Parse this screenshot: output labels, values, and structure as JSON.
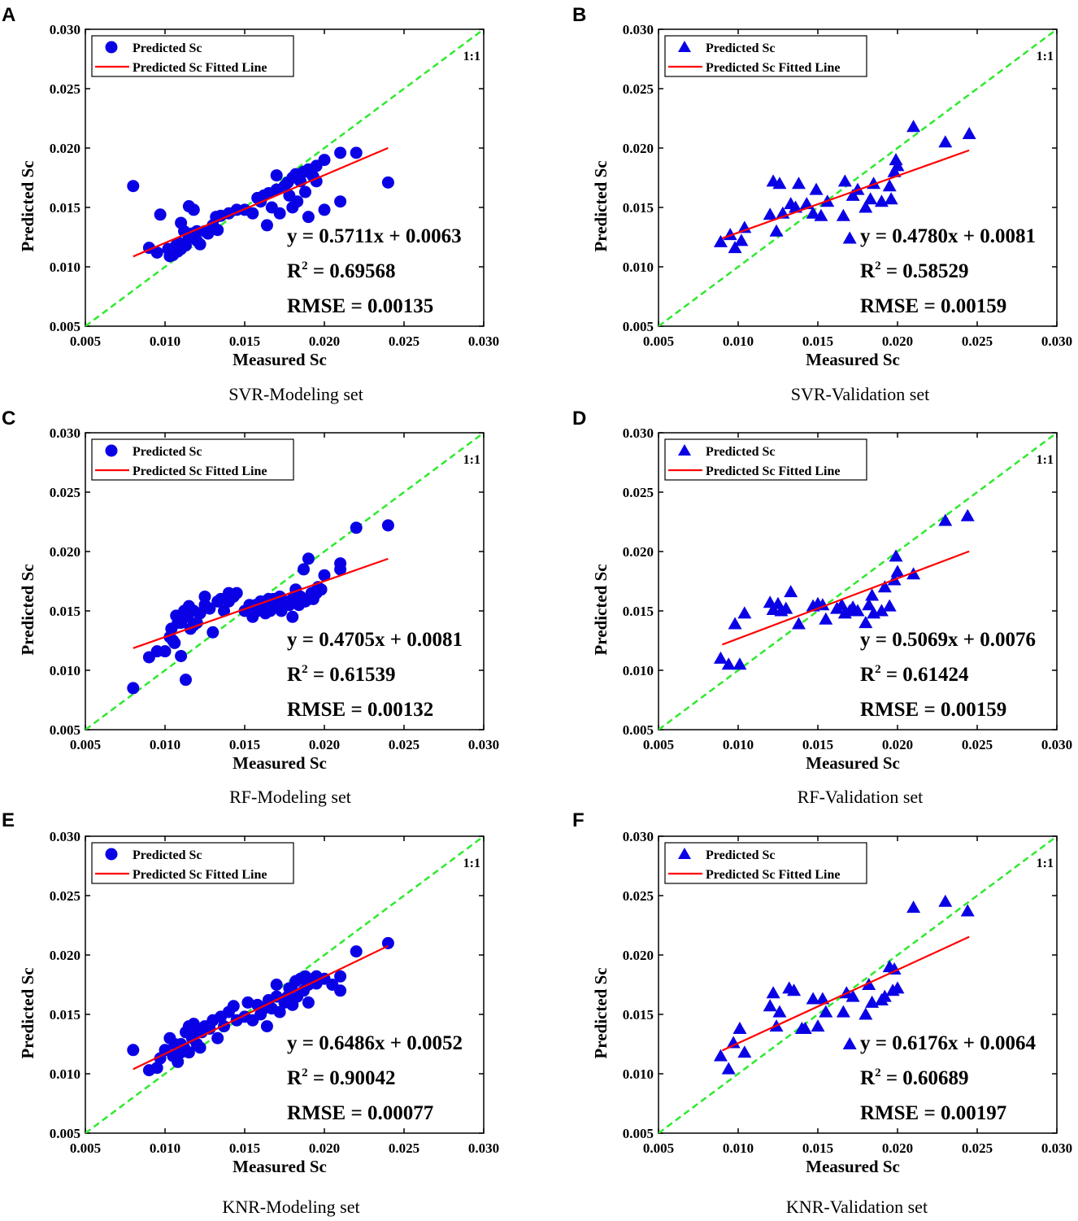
{
  "figure": {
    "legend": {
      "points": "Predicted Sc",
      "line": "Predicted Sc Fitted Line"
    },
    "xlabel": "Measured Sc",
    "ylabel": "Predicted Sc",
    "ref_label": "1:1",
    "ticks": [
      "0.005",
      "0.010",
      "0.015",
      "0.020",
      "0.025",
      "0.030"
    ],
    "colors": {
      "points": "#0a00e6",
      "fit": "#ff0000",
      "ref": "#2eea2e",
      "axis": "#000000"
    }
  },
  "chart_data": [
    {
      "panel": "A",
      "type": "scatter",
      "title": "SVR-Modeling set",
      "marker": "circle",
      "xlabel": "Measured Sc",
      "ylabel": "Predicted Sc",
      "xlim": [
        0.005,
        0.03
      ],
      "ylim": [
        0.005,
        0.03
      ],
      "equation": "y = 0.5711x + 0.0063",
      "r2_label": "R",
      "r2_value": " = 0.69568",
      "rmse": "RMSE = 0.00135",
      "fit": {
        "slope": 0.5711,
        "intercept": 0.0063,
        "x_range": [
          0.008,
          0.024
        ]
      },
      "x": [
        0.008,
        0.009,
        0.0095,
        0.0097,
        0.0102,
        0.0103,
        0.0104,
        0.0105,
        0.0105,
        0.0107,
        0.0108,
        0.0109,
        0.011,
        0.011,
        0.0112,
        0.0113,
        0.0115,
        0.0115,
        0.0117,
        0.0118,
        0.0118,
        0.012,
        0.012,
        0.0122,
        0.0125,
        0.0127,
        0.013,
        0.0132,
        0.0133,
        0.0135,
        0.014,
        0.0145,
        0.015,
        0.0155,
        0.0158,
        0.016,
        0.0162,
        0.0164,
        0.0165,
        0.0167,
        0.017,
        0.017,
        0.0172,
        0.0175,
        0.0177,
        0.0178,
        0.018,
        0.018,
        0.0182,
        0.0183,
        0.0185,
        0.0187,
        0.0188,
        0.019,
        0.019,
        0.0192,
        0.0193,
        0.0195,
        0.0195,
        0.02,
        0.02,
        0.021,
        0.021,
        0.022,
        0.024
      ],
      "y": [
        0.0168,
        0.0116,
        0.0112,
        0.0144,
        0.0115,
        0.0109,
        0.0113,
        0.011,
        0.0115,
        0.0118,
        0.0113,
        0.012,
        0.0137,
        0.0115,
        0.013,
        0.0118,
        0.0125,
        0.0151,
        0.0128,
        0.0125,
        0.0148,
        0.0122,
        0.013,
        0.0119,
        0.013,
        0.0128,
        0.0135,
        0.0142,
        0.0131,
        0.0143,
        0.0145,
        0.0148,
        0.0148,
        0.0145,
        0.0158,
        0.0155,
        0.016,
        0.0135,
        0.0162,
        0.015,
        0.0165,
        0.0177,
        0.0145,
        0.0168,
        0.0171,
        0.016,
        0.0175,
        0.015,
        0.0178,
        0.0155,
        0.0172,
        0.018,
        0.0163,
        0.0182,
        0.0142,
        0.0178,
        0.0176,
        0.0185,
        0.0172,
        0.019,
        0.0148,
        0.0155,
        0.0196,
        0.0196,
        0.0171
      ]
    },
    {
      "panel": "B",
      "type": "scatter",
      "title": "SVR-Validation set",
      "marker": "triangle",
      "xlabel": "Measured Sc",
      "ylabel": "Predicted Sc",
      "xlim": [
        0.005,
        0.03
      ],
      "ylim": [
        0.005,
        0.03
      ],
      "equation": "y = 0.4780x + 0.0081",
      "r2_label": "R",
      "r2_value": " = 0.58529",
      "rmse": "RMSE = 0.00159",
      "fit": {
        "slope": 0.478,
        "intercept": 0.0081,
        "x_range": [
          0.009,
          0.0245
        ]
      },
      "x": [
        0.0089,
        0.0095,
        0.0098,
        0.0102,
        0.0104,
        0.012,
        0.0122,
        0.0124,
        0.0126,
        0.0128,
        0.0133,
        0.0136,
        0.0138,
        0.0143,
        0.0147,
        0.0149,
        0.0152,
        0.0156,
        0.0166,
        0.0167,
        0.017,
        0.0172,
        0.0175,
        0.018,
        0.0183,
        0.0185,
        0.019,
        0.0195,
        0.0196,
        0.0198,
        0.0199,
        0.02,
        0.021,
        0.023,
        0.0245
      ],
      "y": [
        0.0121,
        0.0127,
        0.0116,
        0.0122,
        0.0133,
        0.0144,
        0.0172,
        0.013,
        0.017,
        0.0145,
        0.0153,
        0.015,
        0.017,
        0.0153,
        0.0145,
        0.0165,
        0.0143,
        0.0155,
        0.0143,
        0.0172,
        0.0124,
        0.016,
        0.0165,
        0.015,
        0.0157,
        0.017,
        0.0155,
        0.0168,
        0.0157,
        0.018,
        0.019,
        0.0185,
        0.0218,
        0.0205,
        0.0212
      ]
    },
    {
      "panel": "C",
      "type": "scatter",
      "title": "RF-Modeling set",
      "marker": "circle",
      "xlabel": "Measured Sc",
      "ylabel": "Predicted Sc",
      "xlim": [
        0.005,
        0.03
      ],
      "ylim": [
        0.005,
        0.03
      ],
      "equation": "y = 0.4705x + 0.0081",
      "r2_label": "R",
      "r2_value": " = 0.61539",
      "rmse": "RMSE = 0.00132",
      "fit": {
        "slope": 0.4705,
        "intercept": 0.0081,
        "x_range": [
          0.008,
          0.024
        ]
      },
      "x": [
        0.008,
        0.009,
        0.0095,
        0.01,
        0.0103,
        0.0104,
        0.0105,
        0.0106,
        0.0107,
        0.0108,
        0.011,
        0.011,
        0.0112,
        0.0113,
        0.0114,
        0.0115,
        0.0116,
        0.0118,
        0.0118,
        0.012,
        0.0122,
        0.0125,
        0.0125,
        0.0128,
        0.013,
        0.0133,
        0.0135,
        0.0137,
        0.014,
        0.014,
        0.0143,
        0.0145,
        0.015,
        0.0153,
        0.0155,
        0.0157,
        0.0158,
        0.016,
        0.0162,
        0.0163,
        0.0165,
        0.0166,
        0.0168,
        0.017,
        0.0172,
        0.0173,
        0.0175,
        0.0178,
        0.018,
        0.018,
        0.0182,
        0.0184,
        0.0185,
        0.0187,
        0.0188,
        0.019,
        0.019,
        0.0192,
        0.0193,
        0.0195,
        0.0196,
        0.0198,
        0.02,
        0.021,
        0.021,
        0.022,
        0.024
      ],
      "y": [
        0.0085,
        0.0111,
        0.0116,
        0.0116,
        0.0128,
        0.0135,
        0.0125,
        0.0123,
        0.0146,
        0.014,
        0.014,
        0.0112,
        0.015,
        0.0092,
        0.0145,
        0.0154,
        0.0135,
        0.015,
        0.0138,
        0.014,
        0.0148,
        0.0155,
        0.0162,
        0.0152,
        0.0132,
        0.0158,
        0.016,
        0.015,
        0.0158,
        0.0165,
        0.0162,
        0.0165,
        0.015,
        0.0155,
        0.0145,
        0.0155,
        0.015,
        0.0158,
        0.0155,
        0.0148,
        0.016,
        0.015,
        0.016,
        0.0155,
        0.0162,
        0.015,
        0.0158,
        0.0155,
        0.016,
        0.0145,
        0.0168,
        0.0155,
        0.0162,
        0.0185,
        0.0158,
        0.0194,
        0.016,
        0.0165,
        0.016,
        0.0165,
        0.017,
        0.0168,
        0.018,
        0.019,
        0.0185,
        0.022,
        0.0222
      ]
    },
    {
      "panel": "D",
      "type": "scatter",
      "title": "RF-Validation set",
      "marker": "triangle",
      "xlabel": "Measured Sc",
      "ylabel": "Predicted Sc",
      "xlim": [
        0.005,
        0.03
      ],
      "ylim": [
        0.005,
        0.03
      ],
      "equation": "y = 0.5069x + 0.0076",
      "r2_label": "R",
      "r2_value": " = 0.61424",
      "rmse": "RMSE = 0.00159",
      "fit": {
        "slope": 0.5069,
        "intercept": 0.0076,
        "x_range": [
          0.009,
          0.0245
        ]
      },
      "x": [
        0.0089,
        0.0094,
        0.0098,
        0.0101,
        0.0104,
        0.012,
        0.0122,
        0.0125,
        0.0127,
        0.013,
        0.0133,
        0.0138,
        0.0147,
        0.015,
        0.0153,
        0.0155,
        0.0162,
        0.0165,
        0.0167,
        0.017,
        0.0172,
        0.0175,
        0.018,
        0.0182,
        0.0184,
        0.0185,
        0.019,
        0.0192,
        0.0195,
        0.0198,
        0.0199,
        0.02,
        0.021,
        0.023,
        0.0244
      ],
      "y": [
        0.011,
        0.0105,
        0.0139,
        0.0105,
        0.0148,
        0.0157,
        0.0151,
        0.0156,
        0.015,
        0.0152,
        0.0166,
        0.0139,
        0.0154,
        0.0156,
        0.0155,
        0.0143,
        0.0152,
        0.0155,
        0.0148,
        0.015,
        0.0153,
        0.015,
        0.014,
        0.0155,
        0.0163,
        0.0148,
        0.015,
        0.017,
        0.0154,
        0.0176,
        0.0196,
        0.0183,
        0.0181,
        0.0226,
        0.023
      ]
    },
    {
      "panel": "E",
      "type": "scatter",
      "title": "KNR-Modeling set",
      "marker": "circle",
      "xlabel": "Measured Sc",
      "ylabel": "Predicted Sc",
      "xlim": [
        0.005,
        0.03
      ],
      "ylim": [
        0.005,
        0.03
      ],
      "equation": "y = 0.6486x + 0.0052",
      "r2_label": "R",
      "r2_value": " = 0.90042",
      "rmse": "RMSE = 0.00077",
      "fit": {
        "slope": 0.6486,
        "intercept": 0.0052,
        "x_range": [
          0.008,
          0.024
        ]
      },
      "x": [
        0.008,
        0.009,
        0.0095,
        0.0097,
        0.01,
        0.0103,
        0.0105,
        0.0106,
        0.0108,
        0.011,
        0.011,
        0.0112,
        0.0113,
        0.0115,
        0.0115,
        0.0117,
        0.0118,
        0.012,
        0.012,
        0.0122,
        0.0123,
        0.0125,
        0.0128,
        0.013,
        0.0133,
        0.0135,
        0.0137,
        0.014,
        0.0143,
        0.0145,
        0.015,
        0.0152,
        0.0155,
        0.0158,
        0.016,
        0.0162,
        0.0164,
        0.0165,
        0.0167,
        0.017,
        0.017,
        0.0172,
        0.0175,
        0.0177,
        0.0178,
        0.018,
        0.018,
        0.0182,
        0.0183,
        0.0185,
        0.0187,
        0.0188,
        0.019,
        0.019,
        0.0192,
        0.0193,
        0.0195,
        0.0195,
        0.02,
        0.0205,
        0.021,
        0.021,
        0.022,
        0.024
      ],
      "y": [
        0.012,
        0.0103,
        0.0105,
        0.0113,
        0.012,
        0.013,
        0.0115,
        0.0125,
        0.011,
        0.0118,
        0.0125,
        0.0122,
        0.0135,
        0.0118,
        0.014,
        0.013,
        0.0142,
        0.0125,
        0.0138,
        0.0122,
        0.0135,
        0.014,
        0.0138,
        0.0145,
        0.013,
        0.0148,
        0.014,
        0.0152,
        0.0157,
        0.0145,
        0.0148,
        0.016,
        0.0145,
        0.0158,
        0.015,
        0.0155,
        0.014,
        0.0162,
        0.0155,
        0.0165,
        0.0175,
        0.0152,
        0.016,
        0.0165,
        0.0172,
        0.017,
        0.0158,
        0.0178,
        0.0165,
        0.018,
        0.017,
        0.0182,
        0.016,
        0.0175,
        0.0178,
        0.018,
        0.0176,
        0.0182,
        0.018,
        0.0175,
        0.0182,
        0.017,
        0.0203,
        0.021
      ]
    },
    {
      "panel": "F",
      "type": "scatter",
      "title": "KNR-Validation set",
      "marker": "triangle",
      "xlabel": "Measured Sc",
      "ylabel": "Predicted Sc",
      "xlim": [
        0.005,
        0.03
      ],
      "ylim": [
        0.005,
        0.03
      ],
      "equation": "y = 0.6176x + 0.0064",
      "r2_label": "R",
      "r2_value": " = 0.60689",
      "rmse": "RMSE = 0.00197",
      "fit": {
        "slope": 0.6176,
        "intercept": 0.0064,
        "x_range": [
          0.009,
          0.0245
        ]
      },
      "x": [
        0.0089,
        0.0094,
        0.0097,
        0.0101,
        0.0104,
        0.012,
        0.0122,
        0.0124,
        0.0126,
        0.0132,
        0.0135,
        0.014,
        0.0142,
        0.0147,
        0.015,
        0.0153,
        0.0155,
        0.0166,
        0.0168,
        0.017,
        0.0172,
        0.018,
        0.0182,
        0.0184,
        0.019,
        0.0192,
        0.0195,
        0.0197,
        0.0198,
        0.02,
        0.021,
        0.023,
        0.0244
      ],
      "y": [
        0.0115,
        0.0104,
        0.0126,
        0.0138,
        0.0118,
        0.0157,
        0.0168,
        0.014,
        0.0152,
        0.0172,
        0.017,
        0.0138,
        0.0138,
        0.0163,
        0.014,
        0.0163,
        0.0152,
        0.0152,
        0.0168,
        0.0125,
        0.0165,
        0.015,
        0.0175,
        0.016,
        0.0162,
        0.0165,
        0.019,
        0.017,
        0.0188,
        0.0172,
        0.024,
        0.0245,
        0.0237
      ]
    }
  ]
}
